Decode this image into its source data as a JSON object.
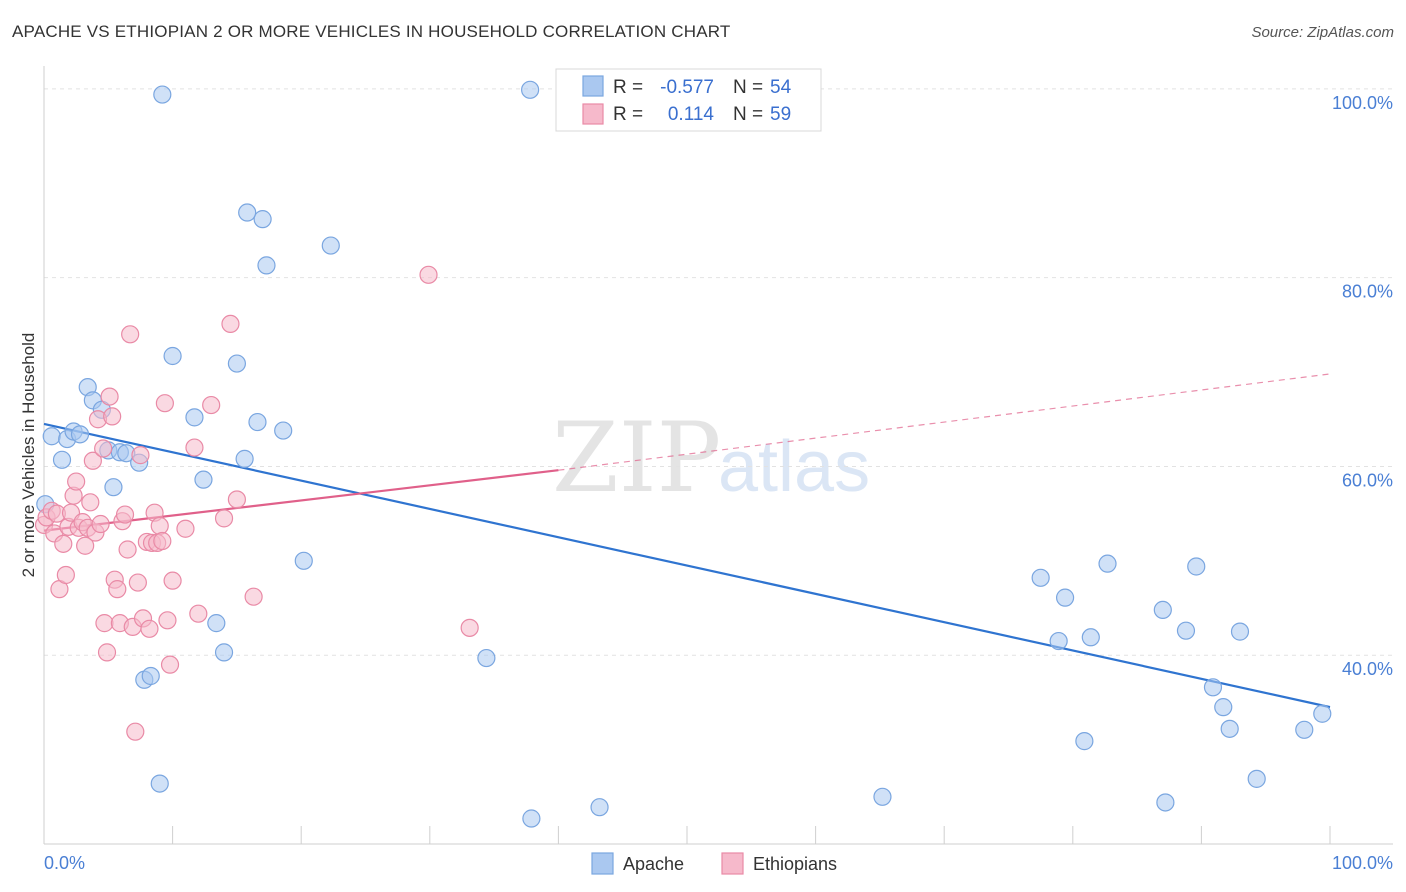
{
  "title": "APACHE VS ETHIOPIAN 2 OR MORE VEHICLES IN HOUSEHOLD CORRELATION CHART",
  "source": "Source: ZipAtlas.com",
  "watermark": {
    "zip": "ZIP",
    "atlas": "atlas"
  },
  "colors": {
    "apache_fill": "#aac8f0",
    "apache_stroke": "#7aa6e0",
    "apache_line": "#2f74d0",
    "ethiopians_fill": "#f6b9cb",
    "ethiopians_stroke": "#e98aa6",
    "ethiopians_line": "#e0608a",
    "tick": "#4a7fd4",
    "grid": "#e2e2e2"
  },
  "legend": {
    "rows": [
      {
        "r_label": "R =",
        "r_value": "-0.577",
        "n_label": "N =",
        "n_value": "54"
      },
      {
        "r_label": "R =",
        "r_value": "0.114",
        "n_label": "N =",
        "n_value": "59"
      }
    ]
  },
  "chart_data": {
    "type": "scatter",
    "xlabel": "",
    "ylabel": "2 or more Vehicles in Household",
    "xlim": [
      0,
      100
    ],
    "ylim": [
      20,
      102
    ],
    "x_tick_labels": [
      "0.0%",
      "100.0%"
    ],
    "y_ticks": [
      40,
      60,
      80,
      100
    ],
    "y_tick_labels": [
      "40.0%",
      "60.0%",
      "80.0%",
      "100.0%"
    ],
    "grid": true,
    "legend_position": "top-center",
    "series": [
      {
        "name": "Apache",
        "r": -0.577,
        "n": 54,
        "trend": {
          "x0": 0,
          "y0": 64.5,
          "x1": 100,
          "y1": 34.5
        },
        "points": [
          [
            0.1,
            56.0
          ],
          [
            0.6,
            63.2
          ],
          [
            1.4,
            60.7
          ],
          [
            1.8,
            62.9
          ],
          [
            2.3,
            63.7
          ],
          [
            2.8,
            63.4
          ],
          [
            3.4,
            68.4
          ],
          [
            3.8,
            67.0
          ],
          [
            4.5,
            66.0
          ],
          [
            5.0,
            61.7
          ],
          [
            5.4,
            57.8
          ],
          [
            5.9,
            61.5
          ],
          [
            6.4,
            61.4
          ],
          [
            7.4,
            60.4
          ],
          [
            7.8,
            37.4
          ],
          [
            8.3,
            37.8
          ],
          [
            9.0,
            26.4
          ],
          [
            9.2,
            99.4
          ],
          [
            10.0,
            71.7
          ],
          [
            11.7,
            65.2
          ],
          [
            12.4,
            58.6
          ],
          [
            13.4,
            43.4
          ],
          [
            14.0,
            40.3
          ],
          [
            15.0,
            70.9
          ],
          [
            15.6,
            60.8
          ],
          [
            15.8,
            86.9
          ],
          [
            16.6,
            64.7
          ],
          [
            17.0,
            86.2
          ],
          [
            17.3,
            81.3
          ],
          [
            18.6,
            63.8
          ],
          [
            20.2,
            50.0
          ],
          [
            22.3,
            83.4
          ],
          [
            34.4,
            39.7
          ],
          [
            37.9,
            22.7
          ],
          [
            37.8,
            99.9
          ],
          [
            43.2,
            23.9
          ],
          [
            65.2,
            25.0
          ],
          [
            77.5,
            48.2
          ],
          [
            78.9,
            41.5
          ],
          [
            79.4,
            46.1
          ],
          [
            80.9,
            30.9
          ],
          [
            81.4,
            41.9
          ],
          [
            82.7,
            49.7
          ],
          [
            87.0,
            44.8
          ],
          [
            87.2,
            24.4
          ],
          [
            88.8,
            42.6
          ],
          [
            89.6,
            49.4
          ],
          [
            90.9,
            36.6
          ],
          [
            91.7,
            34.5
          ],
          [
            92.2,
            32.2
          ],
          [
            93.0,
            42.5
          ],
          [
            94.3,
            26.9
          ],
          [
            98.0,
            32.1
          ],
          [
            99.4,
            33.8
          ]
        ]
      },
      {
        "name": "Ethiopians",
        "r": 0.114,
        "n": 59,
        "trend": {
          "x0": 0,
          "y0": 53.2,
          "x1": 40,
          "y1": 59.6,
          "dash_x1": 100,
          "dash_y1": 69.8
        },
        "points": [
          [
            0.0,
            53.8
          ],
          [
            0.2,
            54.6
          ],
          [
            0.6,
            55.3
          ],
          [
            0.8,
            52.9
          ],
          [
            1.0,
            55.0
          ],
          [
            1.2,
            47.0
          ],
          [
            1.5,
            51.8
          ],
          [
            1.7,
            48.5
          ],
          [
            1.9,
            53.6
          ],
          [
            2.1,
            55.1
          ],
          [
            2.3,
            56.9
          ],
          [
            2.5,
            58.4
          ],
          [
            2.7,
            53.5
          ],
          [
            3.0,
            54.1
          ],
          [
            3.2,
            51.6
          ],
          [
            3.4,
            53.5
          ],
          [
            3.6,
            56.2
          ],
          [
            3.8,
            60.6
          ],
          [
            4.0,
            53.0
          ],
          [
            4.2,
            65.0
          ],
          [
            4.4,
            53.9
          ],
          [
            4.6,
            61.9
          ],
          [
            4.7,
            43.4
          ],
          [
            4.9,
            40.3
          ],
          [
            5.1,
            67.4
          ],
          [
            5.3,
            65.3
          ],
          [
            5.5,
            48.0
          ],
          [
            5.7,
            47.0
          ],
          [
            5.9,
            43.4
          ],
          [
            6.1,
            54.2
          ],
          [
            6.3,
            54.9
          ],
          [
            6.5,
            51.2
          ],
          [
            6.7,
            74.0
          ],
          [
            6.9,
            43.0
          ],
          [
            7.1,
            31.9
          ],
          [
            7.3,
            47.7
          ],
          [
            7.5,
            61.2
          ],
          [
            7.7,
            43.9
          ],
          [
            8.0,
            52.0
          ],
          [
            8.2,
            42.8
          ],
          [
            8.4,
            51.9
          ],
          [
            8.6,
            55.1
          ],
          [
            8.8,
            51.9
          ],
          [
            9.0,
            53.7
          ],
          [
            9.2,
            52.1
          ],
          [
            9.4,
            66.7
          ],
          [
            9.6,
            43.7
          ],
          [
            9.8,
            39.0
          ],
          [
            10.0,
            47.9
          ],
          [
            11.0,
            53.4
          ],
          [
            11.7,
            62.0
          ],
          [
            12.0,
            44.4
          ],
          [
            13.0,
            66.5
          ],
          [
            14.0,
            54.5
          ],
          [
            14.5,
            75.1
          ],
          [
            15.0,
            56.5
          ],
          [
            16.3,
            46.2
          ],
          [
            29.9,
            80.3
          ],
          [
            33.1,
            42.9
          ]
        ]
      }
    ]
  },
  "bottom_legend": [
    "Apache",
    "Ethiopians"
  ]
}
